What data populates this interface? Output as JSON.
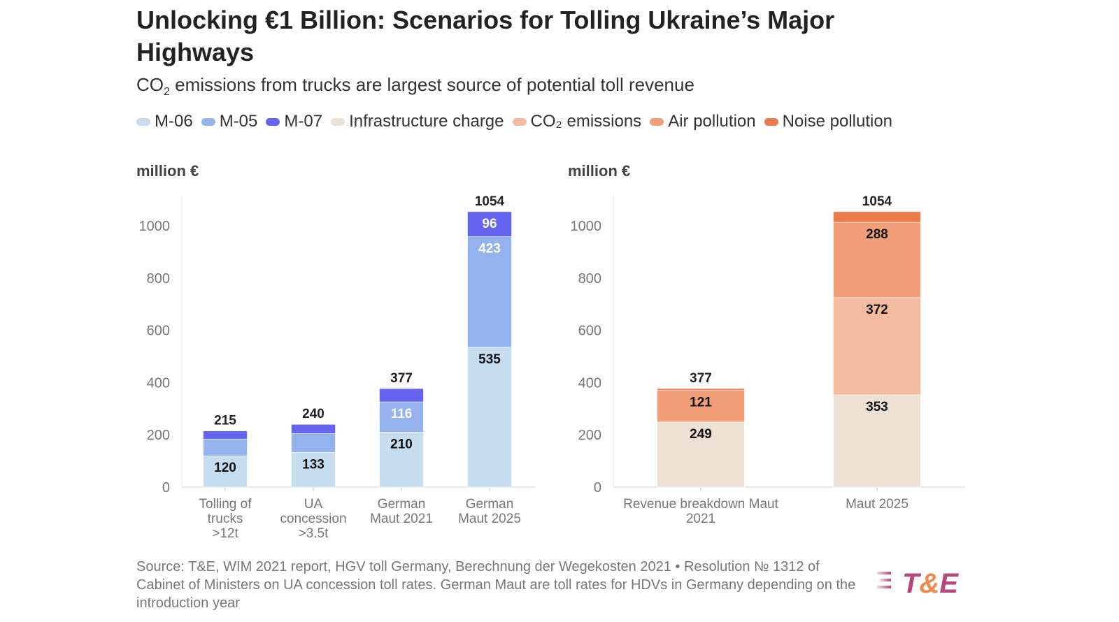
{
  "title": "Unlocking €1 Billion: Scenarios for Tolling Ukraine’s Major Highways",
  "subtitle_pre": "CO",
  "subtitle_sub": "2",
  "subtitle_post": " emissions from trucks are largest source of potential toll revenue",
  "legend": [
    {
      "label": "M-06",
      "color": "#c6ddf0"
    },
    {
      "label": "M-05",
      "color": "#93b2ee"
    },
    {
      "label": "M-07",
      "color": "#6464f0"
    },
    {
      "label": "Infrastructure charge",
      "color": "#ede1d5"
    },
    {
      "label": "CO₂ emissions",
      "color": "#f3bb9f"
    },
    {
      "label": "Air pollution",
      "color": "#f09f78"
    },
    {
      "label": "Noise pollution",
      "color": "#ec7c4e"
    }
  ],
  "source": "Source: T&E, WIM 2021 report, HGV toll Germany, Berechnung der Wegekosten 2021 • Resolution № 1312 of Cabinet of Ministers on UA concession toll rates. German Maut are toll rates for HDVs in Germany depending on the introduction year",
  "logo_text": "T&E",
  "chart_data": [
    {
      "type": "bar",
      "stacked": true,
      "ylabel": "million €",
      "ylim": [
        0,
        1100
      ],
      "yticks": [
        0,
        200,
        400,
        600,
        800,
        1000
      ],
      "grid": false,
      "categories": [
        "Tolling of trucks >12t",
        "UA concession >3.5t",
        "German Maut 2021",
        "German Maut 2025"
      ],
      "totals": [
        215,
        240,
        377,
        1054
      ],
      "series": [
        {
          "name": "M-06",
          "color": "#c6ddf0",
          "values": [
            120,
            133,
            210,
            535
          ],
          "labels": [
            "120",
            "133",
            "210",
            "535"
          ]
        },
        {
          "name": "M-05",
          "color": "#93b2ee",
          "values": [
            64,
            72,
            116,
            423
          ],
          "labels": [
            "",
            "",
            "116",
            "423"
          ]
        },
        {
          "name": "M-07",
          "color": "#6464f0",
          "values": [
            31,
            35,
            51,
            96
          ],
          "labels": [
            "",
            "",
            "",
            "96"
          ]
        }
      ]
    },
    {
      "type": "bar",
      "stacked": true,
      "ylabel": "million €",
      "ylim": [
        0,
        1100
      ],
      "yticks": [
        0,
        200,
        400,
        600,
        800,
        1000
      ],
      "grid": false,
      "categories": [
        "Revenue breakdown Maut 2021",
        "Maut 2025"
      ],
      "totals": [
        377,
        1054
      ],
      "series": [
        {
          "name": "Infrastructure charge",
          "color": "#ede1d5",
          "values": [
            249,
            353
          ],
          "labels": [
            "249",
            "353"
          ]
        },
        {
          "name": "CO₂ emissions",
          "color": "#f3bb9f",
          "values": [
            0,
            372
          ],
          "labels": [
            "",
            "372"
          ]
        },
        {
          "name": "Air pollution",
          "color": "#f09f78",
          "values": [
            121,
            288
          ],
          "labels": [
            "121",
            "288"
          ]
        },
        {
          "name": "Noise pollution",
          "color": "#ec7c4e",
          "values": [
            7,
            41
          ],
          "labels": [
            "",
            ""
          ]
        }
      ]
    }
  ]
}
